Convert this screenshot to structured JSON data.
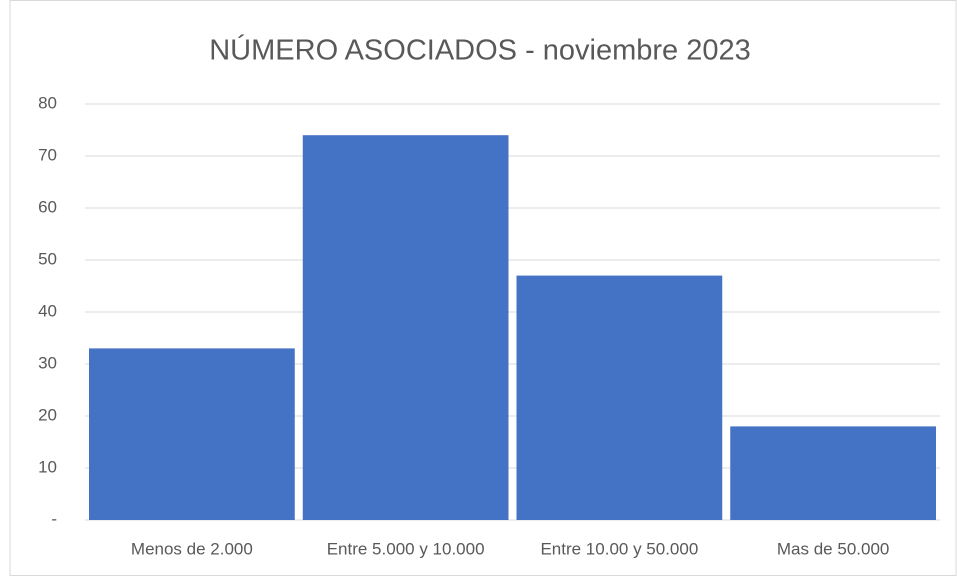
{
  "chart_data": {
    "type": "bar",
    "title": "NÚMERO ASOCIADOS - noviembre 2023",
    "categories": [
      "Menos de 2.000",
      "Entre 5.000 y 10.000",
      "Entre 10.00 y 50.000",
      "Mas de 50.000"
    ],
    "values": [
      33,
      74,
      47,
      18
    ],
    "color": "#4472c4",
    "ylim": [
      0,
      80
    ],
    "yticks": [
      {
        "value": 0,
        "label": "-"
      },
      10,
      20,
      30,
      40,
      50,
      60,
      70,
      80
    ],
    "grid": true
  }
}
